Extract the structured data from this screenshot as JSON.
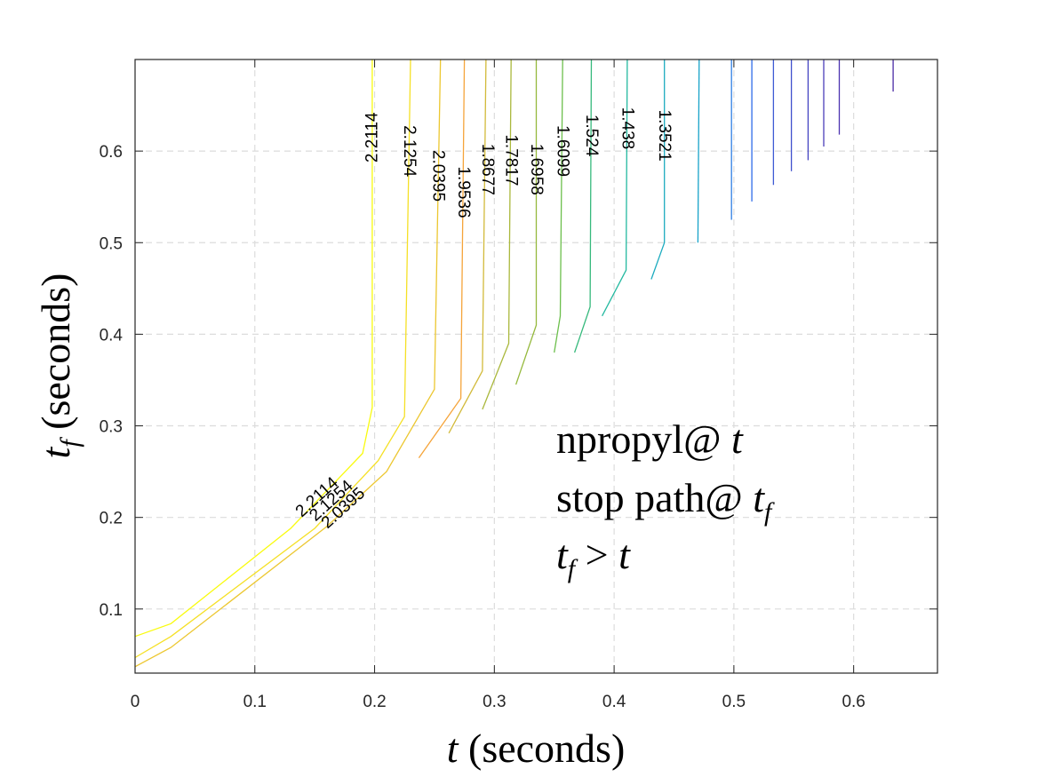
{
  "chart_data": {
    "type": "contour",
    "xlabel": {
      "var": "t",
      "unit": "(seconds)"
    },
    "ylabel": {
      "var": "t",
      "sub": "f",
      "unit": "(seconds)"
    },
    "xlim": [
      0,
      0.67
    ],
    "ylim": [
      0.03,
      0.7
    ],
    "xticks": [
      0,
      0.1,
      0.2,
      0.3,
      0.4,
      0.5,
      0.6
    ],
    "xtick_labels": [
      "0",
      "0.1",
      "0.2",
      "0.3",
      "0.4",
      "0.5",
      "0.6"
    ],
    "yticks": [
      0.1,
      0.2,
      0.3,
      0.4,
      0.5,
      0.6
    ],
    "ytick_labels": [
      "0.1",
      "0.2",
      "0.3",
      "0.4",
      "0.5",
      "0.6"
    ],
    "grid": true,
    "annotation": [
      {
        "text": "npropyl@ ",
        "var": "t",
        "sub": ""
      },
      {
        "text": "stop path@ ",
        "var": "t",
        "sub": "f"
      },
      {
        "text": "",
        "var": "t",
        "sub": "f",
        "rel": " > ",
        "var2": "t"
      }
    ],
    "levels": [
      {
        "value": "2.2114",
        "color": "#f9fb0e",
        "points": [
          [
            0,
            0.07
          ],
          [
            0.03,
            0.084
          ],
          [
            0.13,
            0.188
          ],
          [
            0.19,
            0.27
          ],
          [
            0.198,
            0.32
          ],
          [
            0.198,
            0.7
          ]
        ]
      },
      {
        "value": "2.1254",
        "color": "#f5e025",
        "points": [
          [
            0,
            0.047
          ],
          [
            0.03,
            0.07
          ],
          [
            0.15,
            0.188
          ],
          [
            0.203,
            0.262
          ],
          [
            0.225,
            0.31
          ],
          [
            0.23,
            0.7
          ]
        ]
      },
      {
        "value": "2.0395",
        "color": "#ecc730",
        "points": [
          [
            0,
            0.037
          ],
          [
            0.03,
            0.058
          ],
          [
            0.16,
            0.19
          ],
          [
            0.21,
            0.25
          ],
          [
            0.25,
            0.34
          ],
          [
            0.255,
            0.7
          ]
        ]
      },
      {
        "value": "1.9536",
        "color": "#f5a43a",
        "points": [
          [
            0.237,
            0.265
          ],
          [
            0.272,
            0.33
          ],
          [
            0.275,
            0.7
          ]
        ]
      },
      {
        "value": "1.8677",
        "color": "#d2ba3a",
        "points": [
          [
            0.262,
            0.292
          ],
          [
            0.29,
            0.36
          ],
          [
            0.293,
            0.7
          ]
        ]
      },
      {
        "value": "1.7817",
        "color": "#aab83c",
        "points": [
          [
            0.29,
            0.318
          ],
          [
            0.312,
            0.39
          ],
          [
            0.314,
            0.7
          ]
        ]
      },
      {
        "value": "1.6958",
        "color": "#95b93c",
        "points": [
          [
            0.318,
            0.345
          ],
          [
            0.335,
            0.41
          ],
          [
            0.335,
            0.7
          ]
        ]
      },
      {
        "value": "1.6099",
        "color": "#6cbf4c",
        "points": [
          [
            0.35,
            0.38
          ],
          [
            0.355,
            0.42
          ],
          [
            0.357,
            0.7
          ]
        ]
      },
      {
        "value": "1.524",
        "color": "#36b97c",
        "points": [
          [
            0.367,
            0.38
          ],
          [
            0.38,
            0.43
          ],
          [
            0.381,
            0.7
          ]
        ]
      },
      {
        "value": "1.438",
        "color": "#24b9a0",
        "points": [
          [
            0.39,
            0.42
          ],
          [
            0.41,
            0.47
          ],
          [
            0.411,
            0.7
          ]
        ]
      },
      {
        "value": "1.3521",
        "color": "#1cabbf",
        "points": [
          [
            0.431,
            0.46
          ],
          [
            0.442,
            0.5
          ],
          [
            0.442,
            0.7
          ]
        ]
      },
      {
        "value": "",
        "color": "#18a3c9",
        "points": [
          [
            0.47,
            0.5
          ],
          [
            0.471,
            0.7
          ]
        ]
      },
      {
        "value": "",
        "color": "#2e7ee4",
        "points": [
          [
            0.498,
            0.525
          ],
          [
            0.498,
            0.7
          ]
        ]
      },
      {
        "value": "",
        "color": "#2f6ce9",
        "points": [
          [
            0.515,
            0.545
          ],
          [
            0.515,
            0.7
          ]
        ]
      },
      {
        "value": "",
        "color": "#3d5ad4",
        "points": [
          [
            0.533,
            0.563
          ],
          [
            0.533,
            0.7
          ]
        ]
      },
      {
        "value": "",
        "color": "#3e4fcd",
        "points": [
          [
            0.548,
            0.578
          ],
          [
            0.548,
            0.7
          ]
        ]
      },
      {
        "value": "",
        "color": "#4545c2",
        "points": [
          [
            0.562,
            0.59
          ],
          [
            0.562,
            0.7
          ]
        ]
      },
      {
        "value": "",
        "color": "#4a3dba",
        "points": [
          [
            0.575,
            0.605
          ],
          [
            0.575,
            0.7
          ]
        ]
      },
      {
        "value": "",
        "color": "#4b33b0",
        "points": [
          [
            0.588,
            0.618
          ],
          [
            0.588,
            0.7
          ]
        ]
      },
      {
        "value": "",
        "color": "#4a2aa5",
        "points": [
          [
            0.633,
            0.665
          ],
          [
            0.633,
            0.7
          ]
        ]
      }
    ],
    "contour_labels": [
      {
        "text": "2.2114",
        "x": 0.198,
        "y": 0.615,
        "rotate": -90
      },
      {
        "text": "2.1254",
        "x": 0.229,
        "y": 0.6,
        "rotate": 90
      },
      {
        "text": "2.0395",
        "x": 0.253,
        "y": 0.573,
        "rotate": 90
      },
      {
        "text": "1.9536",
        "x": 0.274,
        "y": 0.555,
        "rotate": 90
      },
      {
        "text": "1.8677",
        "x": 0.294,
        "y": 0.58,
        "rotate": 90
      },
      {
        "text": "1.7817",
        "x": 0.314,
        "y": 0.59,
        "rotate": 90
      },
      {
        "text": "1.6958",
        "x": 0.335,
        "y": 0.58,
        "rotate": 90
      },
      {
        "text": "1.6099",
        "x": 0.357,
        "y": 0.6,
        "rotate": 90
      },
      {
        "text": "1.524",
        "x": 0.381,
        "y": 0.617,
        "rotate": 90
      },
      {
        "text": "1.438",
        "x": 0.411,
        "y": 0.625,
        "rotate": 90
      },
      {
        "text": "1.3521",
        "x": 0.442,
        "y": 0.617,
        "rotate": 90
      },
      {
        "text": "2.2114",
        "x": 0.152,
        "y": 0.222,
        "rotate": -42
      },
      {
        "text": "2.1254",
        "x": 0.164,
        "y": 0.218,
        "rotate": -42
      },
      {
        "text": "2.0395",
        "x": 0.174,
        "y": 0.21,
        "rotate": -42
      }
    ]
  }
}
